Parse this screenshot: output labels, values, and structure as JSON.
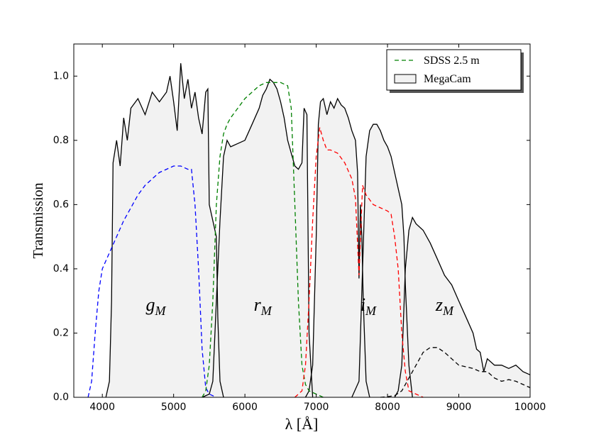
{
  "chart_data": {
    "type": "line",
    "x_label": "λ [Å]",
    "y_label": "Transmission",
    "xlim": [
      3600,
      10000
    ],
    "ylim": [
      0,
      1.1
    ],
    "xticks": [
      4000,
      5000,
      6000,
      7000,
      8000,
      9000,
      10000
    ],
    "yticks": [
      {
        "value": 0,
        "label": "0.0"
      },
      0.2,
      0.4,
      0.6,
      0.8,
      {
        "value": 1,
        "label": "1.0"
      }
    ],
    "legend": "upper right",
    "annotations": [
      {
        "text": "g",
        "subscript": "M"
      },
      {
        "text": "r",
        "subscript": "M"
      },
      {
        "text": "i",
        "subscript": "M"
      },
      {
        "text": "z",
        "subscript": "M"
      }
    ],
    "series": [
      {
        "name": "MegaCam",
        "color": "#000000",
        "fill": "#f2f2f2",
        "style": "solid",
        "bands": [
          {
            "x": [
              4050,
              4100,
              4130,
              4150,
              4200,
              4250,
              4300,
              4350,
              4400,
              4500,
              4600,
              4700,
              4800,
              4900,
              4950,
              5000,
              5050,
              5100,
              5150,
              5200,
              5250,
              5300,
              5350,
              5400,
              5450,
              5480,
              5500,
              5550,
              5600,
              5620,
              5650,
              5700
            ],
            "values": [
              0.0,
              0.05,
              0.3,
              0.73,
              0.8,
              0.72,
              0.87,
              0.8,
              0.9,
              0.93,
              0.88,
              0.95,
              0.92,
              0.95,
              1.0,
              0.92,
              0.83,
              1.04,
              0.93,
              0.99,
              0.9,
              0.95,
              0.87,
              0.82,
              0.95,
              0.96,
              0.6,
              0.55,
              0.5,
              0.25,
              0.05,
              0.0
            ]
          },
          {
            "x": [
              5400,
              5500,
              5550,
              5600,
              5650,
              5700,
              5750,
              5800,
              5900,
              6000,
              6100,
              6200,
              6250,
              6300,
              6350,
              6400,
              6450,
              6500,
              6550,
              6600,
              6650,
              6700,
              6750,
              6800,
              6830,
              6870,
              6900,
              6950
            ],
            "values": [
              0.0,
              0.01,
              0.05,
              0.3,
              0.55,
              0.75,
              0.8,
              0.78,
              0.79,
              0.8,
              0.85,
              0.9,
              0.94,
              0.96,
              0.99,
              0.98,
              0.96,
              0.92,
              0.87,
              0.8,
              0.76,
              0.72,
              0.71,
              0.73,
              0.9,
              0.88,
              0.2,
              0.0
            ]
          },
          {
            "x": [
              6850,
              6900,
              6950,
              7000,
              7030,
              7060,
              7100,
              7150,
              7200,
              7250,
              7300,
              7350,
              7400,
              7450,
              7500,
              7550,
              7580,
              7600,
              7620,
              7640,
              7660,
              7700,
              7750
            ],
            "values": [
              0.0,
              0.02,
              0.1,
              0.5,
              0.85,
              0.92,
              0.93,
              0.88,
              0.92,
              0.9,
              0.93,
              0.91,
              0.9,
              0.87,
              0.83,
              0.8,
              0.7,
              0.37,
              0.6,
              0.5,
              0.3,
              0.05,
              0.0
            ]
          },
          {
            "x": [
              7500,
              7600,
              7650,
              7700,
              7750,
              7800,
              7850,
              7900,
              7950,
              8000,
              8050,
              8100,
              8150,
              8200,
              8230,
              8250,
              8300,
              8350
            ],
            "values": [
              0.0,
              0.05,
              0.4,
              0.75,
              0.83,
              0.85,
              0.85,
              0.83,
              0.8,
              0.78,
              0.75,
              0.7,
              0.65,
              0.6,
              0.5,
              0.35,
              0.1,
              0.0
            ]
          },
          {
            "x": [
              8100,
              8150,
              8200,
              8250,
              8300,
              8350,
              8400,
              8500,
              8600,
              8700,
              8800,
              8900,
              9000,
              9100,
              9200,
              9250,
              9300,
              9350,
              9400,
              9500,
              9600,
              9700,
              9800,
              9900,
              10000
            ],
            "values": [
              0.0,
              0.02,
              0.1,
              0.4,
              0.52,
              0.56,
              0.54,
              0.52,
              0.48,
              0.43,
              0.38,
              0.35,
              0.3,
              0.25,
              0.2,
              0.15,
              0.14,
              0.08,
              0.12,
              0.1,
              0.1,
              0.09,
              0.1,
              0.08,
              0.07
            ]
          }
        ]
      },
      {
        "name": "SDSS 2.5 m",
        "color": "#008000",
        "style": "dashed",
        "bands": [
          {
            "color": "#0000ff",
            "x": [
              3800,
              3850,
              3900,
              3950,
              4000,
              4100,
              4200,
              4300,
              4400,
              4500,
              4600,
              4700,
              4800,
              4900,
              5000,
              5100,
              5200,
              5250,
              5300,
              5350,
              5400,
              5450,
              5500,
              5600
            ],
            "values": [
              0.0,
              0.05,
              0.2,
              0.33,
              0.4,
              0.45,
              0.5,
              0.55,
              0.59,
              0.63,
              0.66,
              0.68,
              0.7,
              0.71,
              0.72,
              0.72,
              0.71,
              0.71,
              0.6,
              0.4,
              0.15,
              0.03,
              0.01,
              0.0
            ]
          },
          {
            "color": "#008000",
            "x": [
              5400,
              5450,
              5500,
              5550,
              5600,
              5650,
              5700,
              5750,
              5800,
              5900,
              6000,
              6100,
              6200,
              6300,
              6400,
              6500,
              6600,
              6650,
              6700,
              6750,
              6800,
              6850,
              6900,
              7000,
              7100
            ],
            "values": [
              0.0,
              0.02,
              0.1,
              0.3,
              0.6,
              0.75,
              0.82,
              0.85,
              0.87,
              0.9,
              0.93,
              0.95,
              0.97,
              0.98,
              0.98,
              0.98,
              0.97,
              0.9,
              0.6,
              0.3,
              0.1,
              0.04,
              0.02,
              0.01,
              0.0
            ]
          },
          {
            "color": "#ff0000",
            "x": [
              6700,
              6800,
              6850,
              6900,
              6950,
              7000,
              7050,
              7100,
              7150,
              7200,
              7300,
              7400,
              7500,
              7550,
              7600,
              7650,
              7700,
              7800,
              7900,
              8000,
              8050,
              8100,
              8150,
              8200,
              8250,
              8300,
              8400,
              8500
            ],
            "values": [
              0.0,
              0.02,
              0.1,
              0.3,
              0.55,
              0.75,
              0.84,
              0.8,
              0.77,
              0.77,
              0.76,
              0.73,
              0.68,
              0.62,
              0.38,
              0.66,
              0.63,
              0.6,
              0.59,
              0.58,
              0.57,
              0.5,
              0.4,
              0.2,
              0.08,
              0.02,
              0.01,
              0.0
            ]
          },
          {
            "color": "#000000",
            "x": [
              7900,
              8000,
              8100,
              8200,
              8300,
              8400,
              8500,
              8600,
              8700,
              8800,
              8900,
              9000,
              9100,
              9200,
              9300,
              9400,
              9500,
              9600,
              9700,
              9800,
              9900,
              10000
            ],
            "values": [
              0.0,
              0.002,
              0.005,
              0.02,
              0.06,
              0.1,
              0.14,
              0.155,
              0.155,
              0.14,
              0.12,
              0.1,
              0.095,
              0.09,
              0.08,
              0.08,
              0.06,
              0.05,
              0.055,
              0.05,
              0.04,
              0.03
            ]
          }
        ]
      }
    ]
  }
}
